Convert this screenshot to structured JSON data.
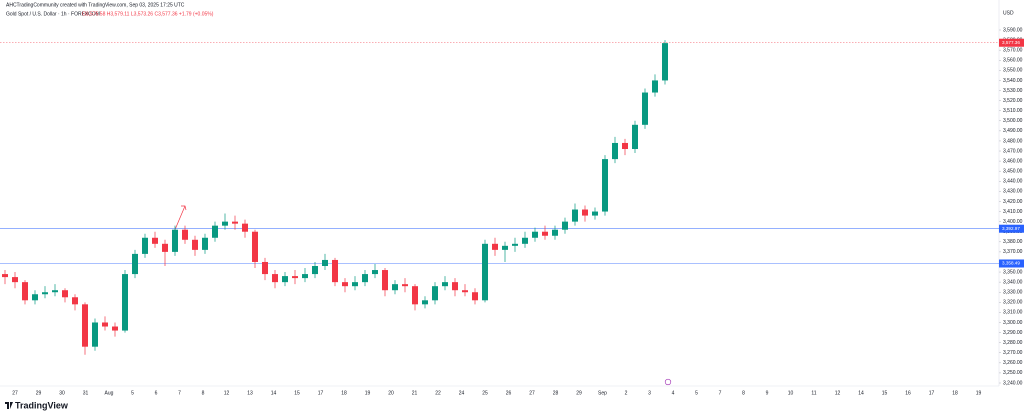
{
  "header": {
    "credit": "AHCTradingCommunity created with TradingView.com, Sep 03, 2025 17:25 UTC",
    "symbol": "Gold Spot / U.S. Dollar · 1h · FOREXCOM",
    "readout": "O3,575.58 H3,579.11 L3,573.26 C3,577.36 +1.79 (+0.05%)",
    "currency": "USD",
    "logo": "TradingView"
  },
  "chart_data": {
    "type": "candlestick",
    "series": [
      {
        "name": "XAUUSD",
        "up_color": "#089981",
        "down_color": "#f23645",
        "ohlc": [
          [
            3348,
            3352,
            3338,
            3345
          ],
          [
            3345,
            3350,
            3334,
            3340
          ],
          [
            3340,
            3342,
            3318,
            3322
          ],
          [
            3322,
            3332,
            3318,
            3328
          ],
          [
            3328,
            3336,
            3324,
            3330
          ],
          [
            3330,
            3338,
            3326,
            3332
          ],
          [
            3332,
            3334,
            3320,
            3325
          ],
          [
            3325,
            3328,
            3312,
            3318
          ],
          [
            3318,
            3320,
            3268,
            3276
          ],
          [
            3276,
            3304,
            3272,
            3300
          ],
          [
            3300,
            3306,
            3292,
            3296
          ],
          [
            3296,
            3300,
            3286,
            3292
          ],
          [
            3292,
            3352,
            3290,
            3348
          ],
          [
            3348,
            3372,
            3344,
            3368
          ],
          [
            3368,
            3388,
            3364,
            3384
          ],
          [
            3384,
            3390,
            3374,
            3378
          ],
          [
            3378,
            3382,
            3356,
            3370
          ],
          [
            3370,
            3396,
            3366,
            3392
          ],
          [
            3392,
            3396,
            3378,
            3382
          ],
          [
            3382,
            3386,
            3366,
            3372
          ],
          [
            3372,
            3388,
            3368,
            3384
          ],
          [
            3384,
            3400,
            3380,
            3396
          ],
          [
            3396,
            3408,
            3392,
            3400
          ],
          [
            3400,
            3406,
            3392,
            3398
          ],
          [
            3398,
            3402,
            3384,
            3390
          ],
          [
            3390,
            3392,
            3354,
            3360
          ],
          [
            3360,
            3364,
            3342,
            3348
          ],
          [
            3348,
            3352,
            3334,
            3340
          ],
          [
            3340,
            3350,
            3336,
            3346
          ],
          [
            3346,
            3352,
            3338,
            3344
          ],
          [
            3344,
            3354,
            3340,
            3348
          ],
          [
            3348,
            3360,
            3344,
            3356
          ],
          [
            3356,
            3368,
            3352,
            3362
          ],
          [
            3362,
            3364,
            3336,
            3340
          ],
          [
            3340,
            3344,
            3330,
            3336
          ],
          [
            3336,
            3346,
            3332,
            3340
          ],
          [
            3340,
            3352,
            3336,
            3348
          ],
          [
            3348,
            3358,
            3344,
            3352
          ],
          [
            3352,
            3354,
            3326,
            3332
          ],
          [
            3332,
            3342,
            3328,
            3338
          ],
          [
            3338,
            3344,
            3330,
            3336
          ],
          [
            3336,
            3338,
            3312,
            3318
          ],
          [
            3318,
            3326,
            3314,
            3322
          ],
          [
            3322,
            3340,
            3318,
            3336
          ],
          [
            3336,
            3346,
            3332,
            3340
          ],
          [
            3340,
            3344,
            3326,
            3332
          ],
          [
            3332,
            3338,
            3326,
            3330
          ],
          [
            3330,
            3334,
            3318,
            3322
          ],
          [
            3322,
            3382,
            3320,
            3378
          ],
          [
            3378,
            3384,
            3366,
            3372
          ],
          [
            3372,
            3380,
            3360,
            3376
          ],
          [
            3376,
            3384,
            3370,
            3378
          ],
          [
            3378,
            3390,
            3374,
            3384
          ],
          [
            3384,
            3394,
            3380,
            3390
          ],
          [
            3390,
            3396,
            3382,
            3386
          ],
          [
            3386,
            3396,
            3382,
            3392
          ],
          [
            3392,
            3404,
            3388,
            3400
          ],
          [
            3400,
            3418,
            3396,
            3412
          ],
          [
            3412,
            3416,
            3400,
            3406
          ],
          [
            3406,
            3414,
            3402,
            3410
          ],
          [
            3410,
            3466,
            3406,
            3462
          ],
          [
            3462,
            3484,
            3458,
            3478
          ],
          [
            3478,
            3482,
            3466,
            3472
          ],
          [
            3472,
            3500,
            3468,
            3496
          ],
          [
            3496,
            3532,
            3492,
            3528
          ],
          [
            3528,
            3546,
            3524,
            3540
          ],
          [
            3540,
            3580,
            3536,
            3577
          ]
        ]
      }
    ],
    "levels": [
      {
        "value": 3577.36,
        "label": "3,577.36",
        "color": "#f23645"
      },
      {
        "value": 3392.97,
        "label": "3,392.97",
        "color": "#2962ff"
      },
      {
        "value": 3358.49,
        "label": "3,358.49",
        "color": "#2962ff"
      }
    ],
    "x_tick_labels": [
      "27",
      "29",
      "30",
      "31",
      "Aug",
      "5",
      "6",
      "7",
      "8",
      "12",
      "13",
      "14",
      "15",
      "17",
      "18",
      "19",
      "20",
      "21",
      "22",
      "24",
      "25",
      "26",
      "27",
      "28",
      "29",
      "Sep",
      "2",
      "3",
      "4",
      "5",
      "7",
      "8",
      "9",
      "10",
      "11",
      "12",
      "14",
      "15",
      "16",
      "17",
      "18",
      "19"
    ],
    "ylim": [
      3240,
      3590
    ],
    "yticks": [
      {
        "value": 3240,
        "label": "3,240.00"
      },
      {
        "value": 3250,
        "label": "3,250.00"
      },
      {
        "value": 3260,
        "label": "3,260.00"
      },
      {
        "value": 3270,
        "label": "3,270.00"
      },
      {
        "value": 3280,
        "label": "3,280.00"
      },
      {
        "value": 3290,
        "label": "3,290.00"
      },
      {
        "value": 3300,
        "label": "3,300.00"
      },
      {
        "value": 3310,
        "label": "3,310.00"
      },
      {
        "value": 3320,
        "label": "3,320.00"
      },
      {
        "value": 3330,
        "label": "3,330.00"
      },
      {
        "value": 3340,
        "label": "3,340.00"
      },
      {
        "value": 3350,
        "label": "3,350.00"
      },
      {
        "value": 3360,
        "label": "3,360.00"
      },
      {
        "value": 3370,
        "label": "3,370.00"
      },
      {
        "value": 3380,
        "label": "3,380.00"
      },
      {
        "value": 3390,
        "label": "3,390.00"
      },
      {
        "value": 3400,
        "label": "3,400.00"
      },
      {
        "value": 3410,
        "label": "3,410.00"
      },
      {
        "value": 3420,
        "label": "3,420.00"
      },
      {
        "value": 3430,
        "label": "3,430.00"
      },
      {
        "value": 3440,
        "label": "3,440.00"
      },
      {
        "value": 3450,
        "label": "3,450.00"
      },
      {
        "value": 3460,
        "label": "3,460.00"
      },
      {
        "value": 3470,
        "label": "3,470.00"
      },
      {
        "value": 3480,
        "label": "3,480.00"
      },
      {
        "value": 3490,
        "label": "3,490.00"
      },
      {
        "value": 3500,
        "label": "3,500.00"
      },
      {
        "value": 3510,
        "label": "3,510.00"
      },
      {
        "value": 3520,
        "label": "3,520.00"
      },
      {
        "value": 3530,
        "label": "3,530.00"
      },
      {
        "value": 3540,
        "label": "3,540.00"
      },
      {
        "value": 3550,
        "label": "3,550.00"
      },
      {
        "value": 3560,
        "label": "3,560.00"
      },
      {
        "value": 3570,
        "label": "3,570.00"
      },
      {
        "value": 3580,
        "label": "3,580.00"
      },
      {
        "value": 3590,
        "label": "3,590.00"
      }
    ]
  }
}
